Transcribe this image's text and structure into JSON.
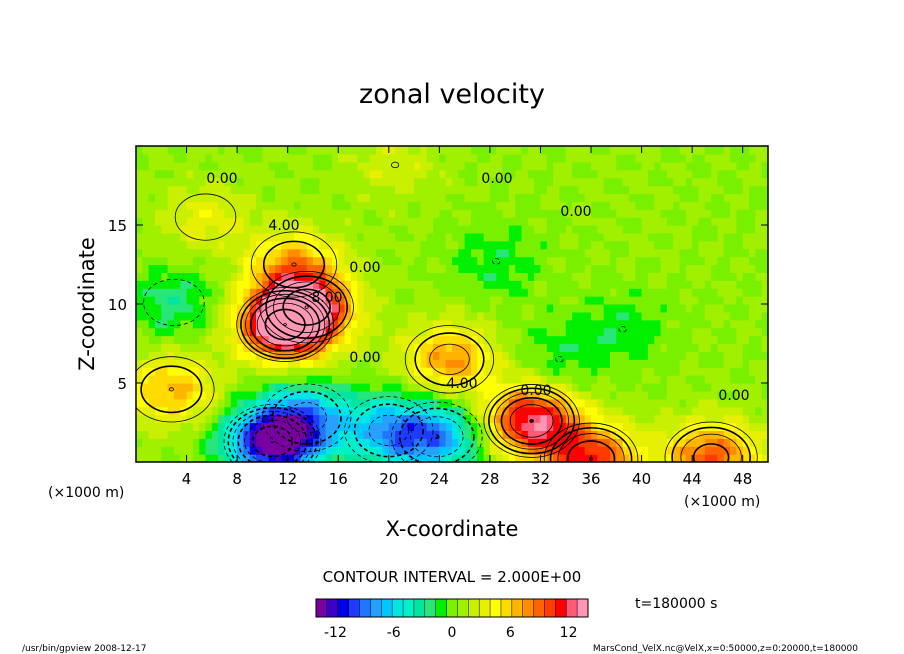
{
  "chart_data": {
    "type": "heatmap",
    "title": "zonal velocity",
    "xlabel": "X-coordinate",
    "ylabel": "Z-coordinate",
    "x_unit_left": "(×1000 m)",
    "x_unit_right": "(×1000 m)",
    "xlim": [
      0,
      50
    ],
    "ylim": [
      0,
      20
    ],
    "x_ticks": [
      4,
      8,
      12,
      16,
      20,
      24,
      28,
      32,
      36,
      40,
      44,
      48
    ],
    "y_ticks": [
      5,
      10,
      15
    ],
    "contour_interval_text": "CONTOUR INTERVAL = 2.000E+00",
    "time_text": "t=180000 s",
    "contour_labels": [
      "0.00",
      "0.00",
      "0.00",
      "4.00",
      "8.00",
      "0.00",
      "0.00",
      "4.00",
      "0.00",
      "0.00"
    ],
    "colorbar": {
      "range": [
        -14,
        14
      ],
      "ticks": [
        -12,
        -6,
        0,
        6,
        12
      ],
      "colors": [
        "#7800a0",
        "#3c00c8",
        "#0000e6",
        "#1e3cff",
        "#1e78ff",
        "#28a0ff",
        "#00c8ff",
        "#00e6e6",
        "#00f0c8",
        "#00e6a0",
        "#28e678",
        "#00f000",
        "#78f000",
        "#a0f000",
        "#c8f000",
        "#e6f000",
        "#ffff00",
        "#ffdc00",
        "#ffb400",
        "#ff8c00",
        "#ff6400",
        "#ff3c00",
        "#ff0000",
        "#ff5a78",
        "#ff96b4"
      ]
    },
    "features": [
      {
        "x": 11.8,
        "z": 8.7,
        "value": 14
      },
      {
        "x": 13.5,
        "z": 9.8,
        "value": 10
      },
      {
        "x": 12.5,
        "z": 12.5,
        "value": 6
      },
      {
        "x": 24.8,
        "z": 6.5,
        "value": 7
      },
      {
        "x": 31.3,
        "z": 2.6,
        "value": 12
      },
      {
        "x": 36.0,
        "z": 0.2,
        "value": 10
      },
      {
        "x": 45.5,
        "z": 0.3,
        "value": 9
      },
      {
        "x": 2.8,
        "z": 4.6,
        "value": 6
      },
      {
        "x": 5.5,
        "z": 15.5,
        "value": 3
      },
      {
        "x": 10.8,
        "z": 1.3,
        "value": -14
      },
      {
        "x": 13.5,
        "z": 2.8,
        "value": -7
      },
      {
        "x": 20.0,
        "z": 2.0,
        "value": -7
      },
      {
        "x": 23.8,
        "z": 1.6,
        "value": -8
      },
      {
        "x": 3.0,
        "z": 10.1,
        "value": -3
      },
      {
        "x": 28.5,
        "z": 12.7,
        "value": -2
      },
      {
        "x": 38.5,
        "z": 8.4,
        "value": -2
      },
      {
        "x": 33.5,
        "z": 6.5,
        "value": -2
      },
      {
        "x": 20.5,
        "z": 18.8,
        "value": 2
      }
    ]
  },
  "footer": {
    "left": "/usr/bin/gpview   2008-12-17",
    "right": "MarsCond_VelX.nc@VelX,x=0:50000,z=0:20000,t=180000"
  }
}
